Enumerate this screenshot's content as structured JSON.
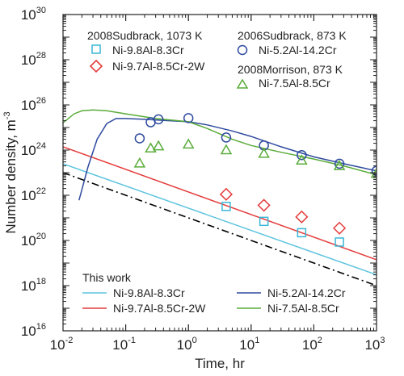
{
  "chart_data": {
    "type": "scatter",
    "xlabel": "Time, hr",
    "ylabel": "Number density, m",
    "ylabel_sup": "-3",
    "x_scale": "log",
    "y_scale": "log",
    "xlim": [
      0.01,
      1000
    ],
    "ylim": [
      1e+16,
      1e+30
    ],
    "x_ticks": [
      {
        "value": 0.01,
        "base": "10",
        "exp": "-2"
      },
      {
        "value": 0.1,
        "base": "10",
        "exp": "-1"
      },
      {
        "value": 1,
        "base": "10",
        "exp": "0"
      },
      {
        "value": 10,
        "base": "10",
        "exp": "1"
      },
      {
        "value": 100,
        "base": "10",
        "exp": "2"
      },
      {
        "value": 1000,
        "base": "10",
        "exp": "3"
      }
    ],
    "y_ticks": [
      {
        "value": 1e+16,
        "base": "10",
        "exp": "16"
      },
      {
        "value": 1e+18,
        "base": "10",
        "exp": "18"
      },
      {
        "value": 1e+20,
        "base": "10",
        "exp": "20"
      },
      {
        "value": 1e+22,
        "base": "10",
        "exp": "22"
      },
      {
        "value": 1e+24,
        "base": "10",
        "exp": "24"
      },
      {
        "value": 1e+26,
        "base": "10",
        "exp": "26"
      },
      {
        "value": 1e+28,
        "base": "10",
        "exp": "28"
      },
      {
        "value": 1e+30,
        "base": "10",
        "exp": "30"
      }
    ],
    "grid": false,
    "legend_headers": {
      "exp_left": "2008Sudbrack, 1073 K",
      "exp_right_top": "2006Sudbrack, 873 K",
      "exp_right_bottom": "2008Morrison, 873 K",
      "model": "This work"
    },
    "scatter_series": [
      {
        "name": "Ni-9.8Al-8.3Cr",
        "marker": "square",
        "color": "#3ab7d6",
        "points": [
          [
            4,
            3.2e+21
          ],
          [
            16,
            7e+20
          ],
          [
            64,
            2.2e+20
          ],
          [
            256,
            8.5e+19
          ]
        ]
      },
      {
        "name": "Ni-9.7Al-8.5Cr-2W",
        "marker": "diamond",
        "color": "#e43d3d",
        "points": [
          [
            4,
            1.1e+22
          ],
          [
            16,
            3.6e+21
          ],
          [
            64,
            1.1e+21
          ],
          [
            256,
            3.5e+20
          ]
        ]
      },
      {
        "name": "Ni-5.2Al-14.2Cr",
        "marker": "circle",
        "color": "#2e4a9e",
        "points": [
          [
            0.167,
            3.3e+24
          ],
          [
            0.25,
            1.7e+25
          ],
          [
            0.333,
            2.3e+25
          ],
          [
            1,
            2.6e+25
          ],
          [
            4,
            3.6e+24
          ],
          [
            16,
            1.6e+24
          ],
          [
            64,
            6e+23
          ],
          [
            256,
            2.5e+23
          ],
          [
            1000,
            1.2e+23
          ]
        ]
      },
      {
        "name": "Ni-7.5Al-8.5Cr",
        "marker": "triangle",
        "color": "#5aac3a",
        "points": [
          [
            0.167,
            2.6e+23
          ],
          [
            0.25,
            1.2e+24
          ],
          [
            0.333,
            1.5e+24
          ],
          [
            1,
            1.8e+24
          ],
          [
            4,
            1e+24
          ],
          [
            16,
            7e+23
          ],
          [
            64,
            3.5e+23
          ],
          [
            256,
            2e+23
          ],
          [
            1000,
            9e+22
          ]
        ]
      }
    ],
    "line_series": [
      {
        "name": "Ni-9.8Al-8.3Cr",
        "color": "#5ec4df",
        "points": [
          [
            0.01,
            2.5e+23
          ],
          [
            1000,
            3e+18
          ]
        ]
      },
      {
        "name": "Ni-9.7Al-8.5Cr-2W",
        "color": "#e43d3d",
        "points": [
          [
            0.01,
            1.4e+24
          ],
          [
            1000,
            1.4e+19
          ]
        ]
      },
      {
        "name": "Ni-5.2Al-14.2Cr",
        "color": "#2e4a9e",
        "points": [
          [
            0.018,
            6e+21
          ],
          [
            0.025,
            1.8e+23
          ],
          [
            0.035,
            3e+24
          ],
          [
            0.05,
            1.5e+25
          ],
          [
            0.07,
            2.5e+25
          ],
          [
            0.1,
            2.5e+25
          ],
          [
            0.2,
            2.3e+25
          ],
          [
            0.5,
            2e+25
          ],
          [
            1,
            1.8e+25
          ],
          [
            2,
            1.3e+25
          ],
          [
            5,
            7e+24
          ],
          [
            10,
            4e+24
          ],
          [
            30,
            1.4e+24
          ],
          [
            100,
            5e+23
          ],
          [
            300,
            2.5e+23
          ],
          [
            1000,
            1.2e+23
          ]
        ]
      },
      {
        "name": "Ni-7.5Al-8.5Cr",
        "color": "#5aac3a",
        "points": [
          [
            0.01,
            1.6e+25
          ],
          [
            0.015,
            4e+25
          ],
          [
            0.02,
            5.5e+25
          ],
          [
            0.03,
            6e+25
          ],
          [
            0.05,
            5.5e+25
          ],
          [
            0.1,
            4e+25
          ],
          [
            0.3,
            2.5e+25
          ],
          [
            1,
            1.8e+25
          ],
          [
            2,
            9e+24
          ],
          [
            5,
            3e+24
          ],
          [
            10,
            1.6e+24
          ],
          [
            30,
            8e+23
          ],
          [
            100,
            4e+23
          ],
          [
            300,
            2e+23
          ],
          [
            1000,
            8e+22
          ]
        ]
      },
      {
        "name": "",
        "color": "#000000",
        "dash": "dashdot",
        "points": [
          [
            0.01,
            1e+23
          ],
          [
            1000,
            1e+18
          ]
        ]
      }
    ]
  }
}
